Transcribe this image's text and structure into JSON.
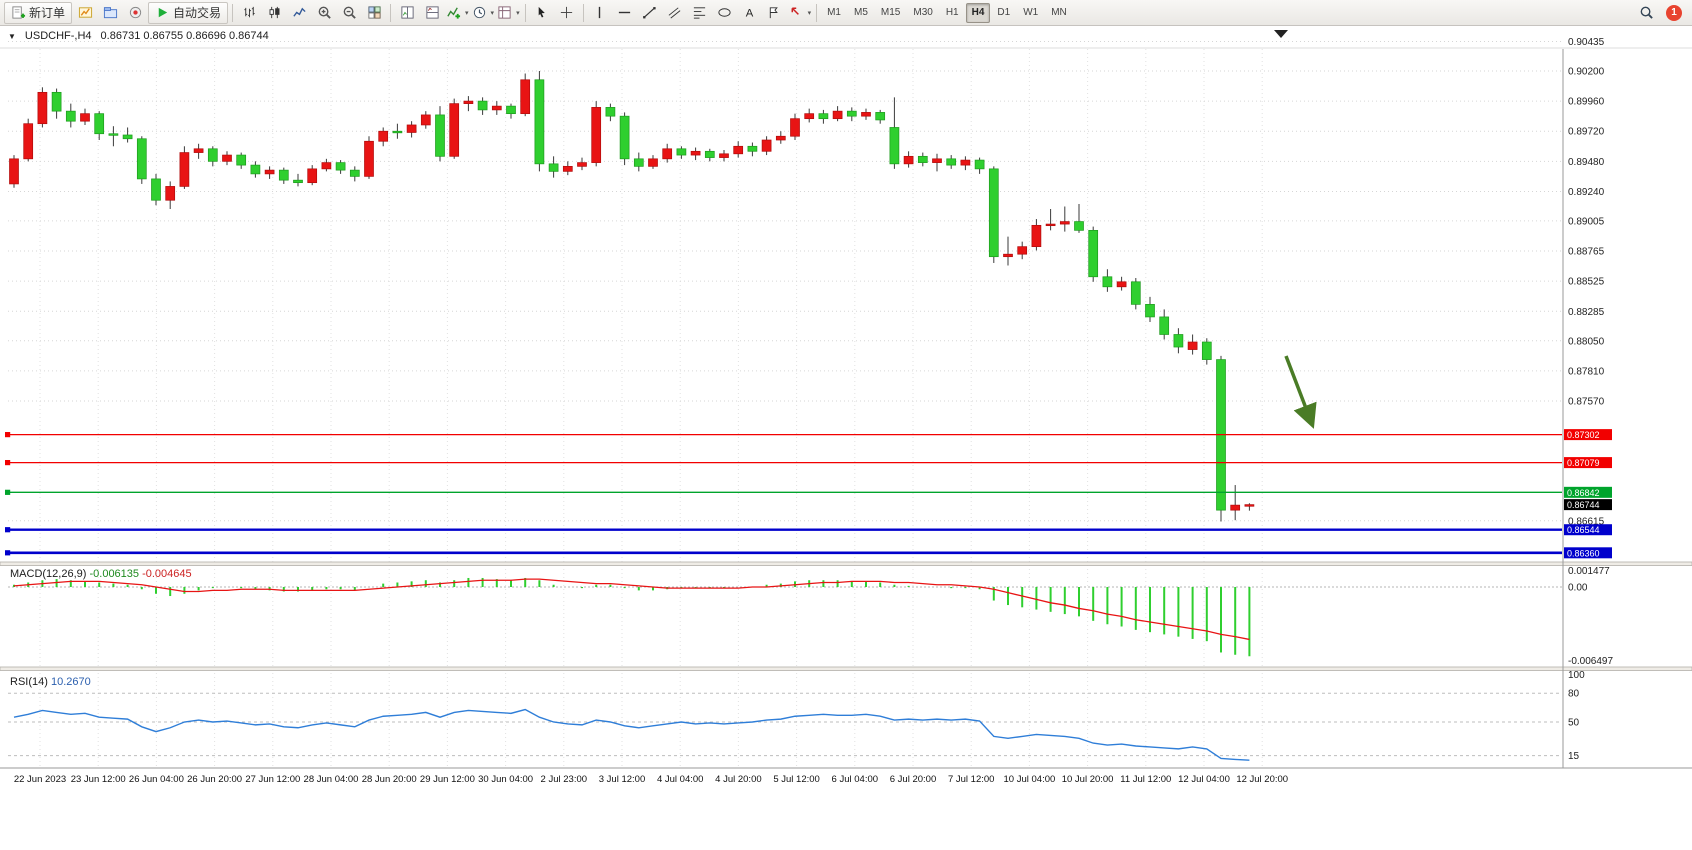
{
  "toolbar": {
    "buttons": [
      {
        "name": "new-order",
        "label": "新订单"
      },
      {
        "name": "new-chart"
      },
      {
        "name": "profiles"
      },
      {
        "name": "experts"
      },
      {
        "name": "autotrade",
        "label": "自动交易"
      },
      {
        "sep": true
      },
      {
        "name": "bar-chart"
      },
      {
        "name": "candlestick-chart"
      },
      {
        "name": "line-chart"
      },
      {
        "name": "zoom-in"
      },
      {
        "name": "zoom-out"
      },
      {
        "name": "tile-windows"
      },
      {
        "sep": true
      },
      {
        "name": "arrange-vertical"
      },
      {
        "name": "arrange-horizontal"
      },
      {
        "name": "indicators",
        "caret": true
      },
      {
        "name": "periods",
        "caret": true
      },
      {
        "name": "templates",
        "caret": true
      },
      {
        "sep": true
      },
      {
        "name": "cursor"
      },
      {
        "name": "crosshair"
      },
      {
        "sep": true
      },
      {
        "name": "vertical-line"
      },
      {
        "name": "horizontal-line"
      },
      {
        "name": "trendline"
      },
      {
        "name": "channel"
      },
      {
        "name": "fibonacci"
      },
      {
        "name": "shapes"
      },
      {
        "name": "text"
      },
      {
        "name": "text-label"
      },
      {
        "name": "arrows",
        "caret": true
      },
      {
        "sep": true
      }
    ],
    "timeframes": [
      "M1",
      "M5",
      "M15",
      "M30",
      "H1",
      "H4",
      "D1",
      "W1",
      "MN"
    ],
    "active_timeframe": "H4",
    "badge": "1"
  },
  "chart": {
    "collapse_glyph": "▼",
    "title": "USDCHF-,H4",
    "ohlc": "0.86731  0.86755  0.86696  0.86744"
  },
  "theme": {
    "bull": "#e81414",
    "bull_border": "#b00b0b",
    "bear": "#2fcf2f",
    "bear_border": "#1d9a1d",
    "wick": "#3a3a3a",
    "grid": "#d6d6d6",
    "vgrid": "#e2e2e2",
    "macd_hist": "#2fcf2f",
    "macd_signal": "#e81414",
    "rsi_line": "#2f7ed8",
    "arrow": "#4a7c26",
    "tag_text": "#ffffff"
  },
  "price_axis": {
    "labels": [
      "0.90435",
      "0.90200",
      "0.89960",
      "0.89720",
      "0.89480",
      "0.89240",
      "0.89005",
      "0.88765",
      "0.88525",
      "0.88285",
      "0.88050",
      "0.87810",
      "0.87570",
      "0.86615"
    ],
    "tags": [
      {
        "text": "0.87302",
        "bg": "#f20000"
      },
      {
        "text": "0.87079",
        "bg": "#f20000"
      },
      {
        "text": "0.86842",
        "bg": "#00a42c"
      },
      {
        "text": "0.86744",
        "bg": "#000000"
      },
      {
        "text": "0.86544",
        "bg": "#0000cc"
      },
      {
        "text": "0.86360",
        "bg": "#0000cc"
      }
    ]
  },
  "levels": [
    {
      "value": 0.87302,
      "color": "#f20000",
      "width": 1.2
    },
    {
      "value": 0.87079,
      "color": "#f20000",
      "width": 1.2
    },
    {
      "value": 0.86842,
      "color": "#00a42c",
      "width": 1.4
    },
    {
      "value": 0.86544,
      "color": "#0000cc",
      "width": 2.4
    },
    {
      "value": 0.8636,
      "color": "#0000cc",
      "width": 2.6
    }
  ],
  "macd": {
    "name": "MACD(12,26,9)",
    "value_main": "-0.006135",
    "value_signal": "-0.004645",
    "axis": [
      "0.001477",
      "0.00",
      "-0.006497"
    ]
  },
  "rsi": {
    "name": "RSI(14)",
    "value": "10.2670",
    "axis": [
      "100",
      "80",
      "50",
      "15"
    ],
    "level_lines": [
      80,
      50,
      15
    ]
  },
  "time_axis": [
    "22 Jun 2023",
    "23 Jun 12:00",
    "26 Jun 04:00",
    "26 Jun 20:00",
    "27 Jun 12:00",
    "28 Jun 04:00",
    "28 Jun 20:00",
    "29 Jun 12:00",
    "30 Jun 04:00",
    "2 Jul 23:00",
    "3 Jul 12:00",
    "4 Jul 04:00",
    "4 Jul 20:00",
    "5 Jul 12:00",
    "6 Jul 04:00",
    "6 Jul 20:00",
    "7 Jul 12:00",
    "10 Jul 04:00",
    "10 Jul 20:00",
    "11 Jul 12:00",
    "12 Jul 04:00",
    "12 Jul 20:00"
  ],
  "chart_data": {
    "type": "candlestick",
    "symbol": "USDCHF",
    "period": "H4",
    "note": "red body = bullish, lime body = bearish (CN color convention)",
    "price_range_visible": [
      0.8625,
      0.9047
    ],
    "open": [
      0.893,
      0.895,
      0.8978,
      0.9003,
      0.8988,
      0.898,
      0.8986,
      0.897,
      0.8969,
      0.8966,
      0.8934,
      0.8917,
      0.8928,
      0.8955,
      0.8958,
      0.8948,
      0.8953,
      0.8945,
      0.8938,
      0.8941,
      0.8933,
      0.8931,
      0.8942,
      0.8947,
      0.8941,
      0.8936,
      0.8964,
      0.8972,
      0.8971,
      0.8977,
      0.8985,
      0.8952,
      0.8994,
      0.8996,
      0.8989,
      0.8992,
      0.8986,
      0.9013,
      0.8946,
      0.894,
      0.8944,
      0.8947,
      0.8991,
      0.8984,
      0.895,
      0.8944,
      0.895,
      0.8958,
      0.8953,
      0.8956,
      0.8951,
      0.8954,
      0.896,
      0.8956,
      0.8965,
      0.8968,
      0.8982,
      0.8986,
      0.8982,
      0.8988,
      0.8984,
      0.8987,
      0.8975,
      0.8946,
      0.8952,
      0.8947,
      0.895,
      0.8945,
      0.8949,
      0.8942,
      0.8872,
      0.8874,
      0.888,
      0.8897,
      0.8898,
      0.89,
      0.8893,
      0.8856,
      0.8848,
      0.8852,
      0.8834,
      0.8824,
      0.881,
      0.8798,
      0.8804,
      0.879,
      0.867,
      0.86731
    ],
    "high": [
      0.8953,
      0.8982,
      0.9007,
      0.9006,
      0.8994,
      0.899,
      0.8988,
      0.8976,
      0.8975,
      0.8968,
      0.8938,
      0.8932,
      0.896,
      0.8962,
      0.896,
      0.8956,
      0.8955,
      0.8948,
      0.8944,
      0.8943,
      0.8938,
      0.8945,
      0.895,
      0.8949,
      0.8944,
      0.8968,
      0.8975,
      0.8978,
      0.898,
      0.8988,
      0.8992,
      0.8998,
      0.9,
      0.8999,
      0.8996,
      0.8994,
      0.9018,
      0.902,
      0.8952,
      0.8948,
      0.8951,
      0.8996,
      0.8994,
      0.8987,
      0.8955,
      0.8953,
      0.8962,
      0.896,
      0.8959,
      0.8958,
      0.8957,
      0.8964,
      0.8963,
      0.8968,
      0.8972,
      0.8986,
      0.899,
      0.8989,
      0.8992,
      0.8991,
      0.899,
      0.8989,
      0.8999,
      0.8956,
      0.8955,
      0.8954,
      0.8953,
      0.8952,
      0.8951,
      0.8944,
      0.8888,
      0.8884,
      0.8902,
      0.891,
      0.8912,
      0.8914,
      0.8896,
      0.8862,
      0.8856,
      0.8855,
      0.884,
      0.883,
      0.8815,
      0.881,
      0.8807,
      0.8793,
      0.869,
      0.86755
    ],
    "low": [
      0.8927,
      0.8948,
      0.8975,
      0.8982,
      0.8975,
      0.8977,
      0.8965,
      0.896,
      0.8963,
      0.893,
      0.8913,
      0.891,
      0.8926,
      0.895,
      0.8944,
      0.8945,
      0.8942,
      0.8935,
      0.8934,
      0.893,
      0.8928,
      0.8929,
      0.894,
      0.8938,
      0.8932,
      0.8934,
      0.896,
      0.8966,
      0.8967,
      0.8974,
      0.8948,
      0.895,
      0.8988,
      0.8985,
      0.8985,
      0.8982,
      0.8984,
      0.894,
      0.8935,
      0.8937,
      0.8941,
      0.8944,
      0.898,
      0.8945,
      0.894,
      0.8942,
      0.8947,
      0.895,
      0.8949,
      0.8948,
      0.8948,
      0.8951,
      0.8952,
      0.8953,
      0.8962,
      0.8965,
      0.8979,
      0.8978,
      0.898,
      0.898,
      0.8981,
      0.8978,
      0.8942,
      0.8943,
      0.8944,
      0.894,
      0.8942,
      0.8941,
      0.8938,
      0.8867,
      0.8865,
      0.887,
      0.8877,
      0.8893,
      0.8892,
      0.8891,
      0.8852,
      0.8844,
      0.8845,
      0.883,
      0.882,
      0.8806,
      0.8795,
      0.8794,
      0.8786,
      0.8661,
      0.8662,
      0.86696
    ],
    "close": [
      0.895,
      0.8978,
      0.9003,
      0.8988,
      0.898,
      0.8986,
      0.897,
      0.8969,
      0.8966,
      0.8934,
      0.8917,
      0.8928,
      0.8955,
      0.8958,
      0.8948,
      0.8953,
      0.8945,
      0.8938,
      0.8941,
      0.8933,
      0.8931,
      0.8942,
      0.8947,
      0.8941,
      0.8936,
      0.8964,
      0.8972,
      0.8971,
      0.8977,
      0.8985,
      0.8952,
      0.8994,
      0.8996,
      0.8989,
      0.8992,
      0.8986,
      0.9013,
      0.8946,
      0.894,
      0.8944,
      0.8947,
      0.8991,
      0.8984,
      0.895,
      0.8944,
      0.895,
      0.8958,
      0.8953,
      0.8956,
      0.8951,
      0.8954,
      0.896,
      0.8956,
      0.8965,
      0.8968,
      0.8982,
      0.8986,
      0.8982,
      0.8988,
      0.8984,
      0.8987,
      0.8981,
      0.8946,
      0.8952,
      0.8947,
      0.895,
      0.8945,
      0.8949,
      0.8942,
      0.8872,
      0.8874,
      0.888,
      0.8897,
      0.8898,
      0.89,
      0.8893,
      0.8856,
      0.8848,
      0.8852,
      0.8834,
      0.8824,
      0.881,
      0.88,
      0.8804,
      0.879,
      0.867,
      0.8674,
      0.86744
    ],
    "indicators": {
      "macd": {
        "params": "12,26,9",
        "main": [
          0.0002,
          0.0004,
          0.0006,
          0.0007,
          0.0006,
          0.0005,
          0.0004,
          0.0003,
          0.0002,
          -0.0002,
          -0.0006,
          -0.0008,
          -0.0006,
          -0.0003,
          -0.0001,
          0.0,
          -0.0001,
          -0.0002,
          -0.0003,
          -0.0004,
          -0.0004,
          -0.0003,
          -0.0002,
          -0.0002,
          -0.0003,
          0.0,
          0.0003,
          0.0004,
          0.0005,
          0.0006,
          0.0004,
          0.0006,
          0.0008,
          0.0008,
          0.0007,
          0.0006,
          0.0008,
          0.0006,
          0.0002,
          0.0,
          -0.0001,
          0.0002,
          0.0002,
          -0.0001,
          -0.0003,
          -0.0003,
          -0.0002,
          -0.0001,
          -0.0001,
          -0.0001,
          -0.0001,
          0.0,
          0.0,
          0.0002,
          0.0003,
          0.0005,
          0.0006,
          0.0006,
          0.0006,
          0.0005,
          0.0005,
          0.0004,
          0.0002,
          0.0001,
          0.0,
          0.0,
          -0.0001,
          -0.0001,
          -0.0002,
          -0.0012,
          -0.0016,
          -0.0018,
          -0.002,
          -0.0022,
          -0.0024,
          -0.0026,
          -0.003,
          -0.0033,
          -0.0035,
          -0.0038,
          -0.004,
          -0.0042,
          -0.0044,
          -0.0046,
          -0.0048,
          -0.0058,
          -0.006,
          -0.006135
        ],
        "signal": [
          0.0001,
          0.0002,
          0.0003,
          0.0004,
          0.0005,
          0.0005,
          0.0005,
          0.0004,
          0.0003,
          0.0002,
          0.0,
          -0.0002,
          -0.0004,
          -0.0004,
          -0.0003,
          -0.0003,
          -0.0002,
          -0.0002,
          -0.0002,
          -0.0003,
          -0.0003,
          -0.0003,
          -0.0003,
          -0.0003,
          -0.0003,
          -0.0002,
          -0.0001,
          0.0,
          0.0001,
          0.0002,
          0.0003,
          0.0004,
          0.0005,
          0.0006,
          0.0006,
          0.0006,
          0.0007,
          0.0007,
          0.0006,
          0.0005,
          0.0004,
          0.0003,
          0.0003,
          0.0002,
          0.0001,
          0.0,
          -0.0001,
          -0.0001,
          -0.0001,
          -0.0001,
          -0.0001,
          -0.0001,
          0.0,
          0.0,
          0.0001,
          0.0002,
          0.0003,
          0.0004,
          0.0004,
          0.0005,
          0.0005,
          0.0005,
          0.0004,
          0.0004,
          0.0003,
          0.0002,
          0.0002,
          0.0001,
          0.0,
          -0.0002,
          -0.0005,
          -0.0008,
          -0.0011,
          -0.0014,
          -0.0016,
          -0.0019,
          -0.0021,
          -0.0024,
          -0.0026,
          -0.0029,
          -0.0031,
          -0.0033,
          -0.0035,
          -0.0037,
          -0.0039,
          -0.0042,
          -0.0044,
          -0.004645
        ]
      },
      "rsi": {
        "params": "14",
        "values": [
          55,
          58,
          62,
          60,
          58,
          59,
          55,
          54,
          53,
          45,
          40,
          44,
          50,
          52,
          50,
          51,
          49,
          47,
          48,
          45,
          44,
          47,
          49,
          47,
          45,
          52,
          56,
          57,
          58,
          60,
          55,
          60,
          62,
          61,
          60,
          59,
          63,
          55,
          50,
          48,
          47,
          52,
          50,
          46,
          44,
          46,
          48,
          50,
          48,
          49,
          48,
          49,
          50,
          52,
          53,
          56,
          57,
          58,
          57,
          57,
          58,
          56,
          52,
          53,
          52,
          53,
          52,
          53,
          51,
          35,
          33,
          35,
          37,
          36,
          35,
          33,
          28,
          26,
          27,
          25,
          24,
          23,
          22,
          24,
          22,
          12,
          11,
          10.267
        ]
      }
    }
  }
}
